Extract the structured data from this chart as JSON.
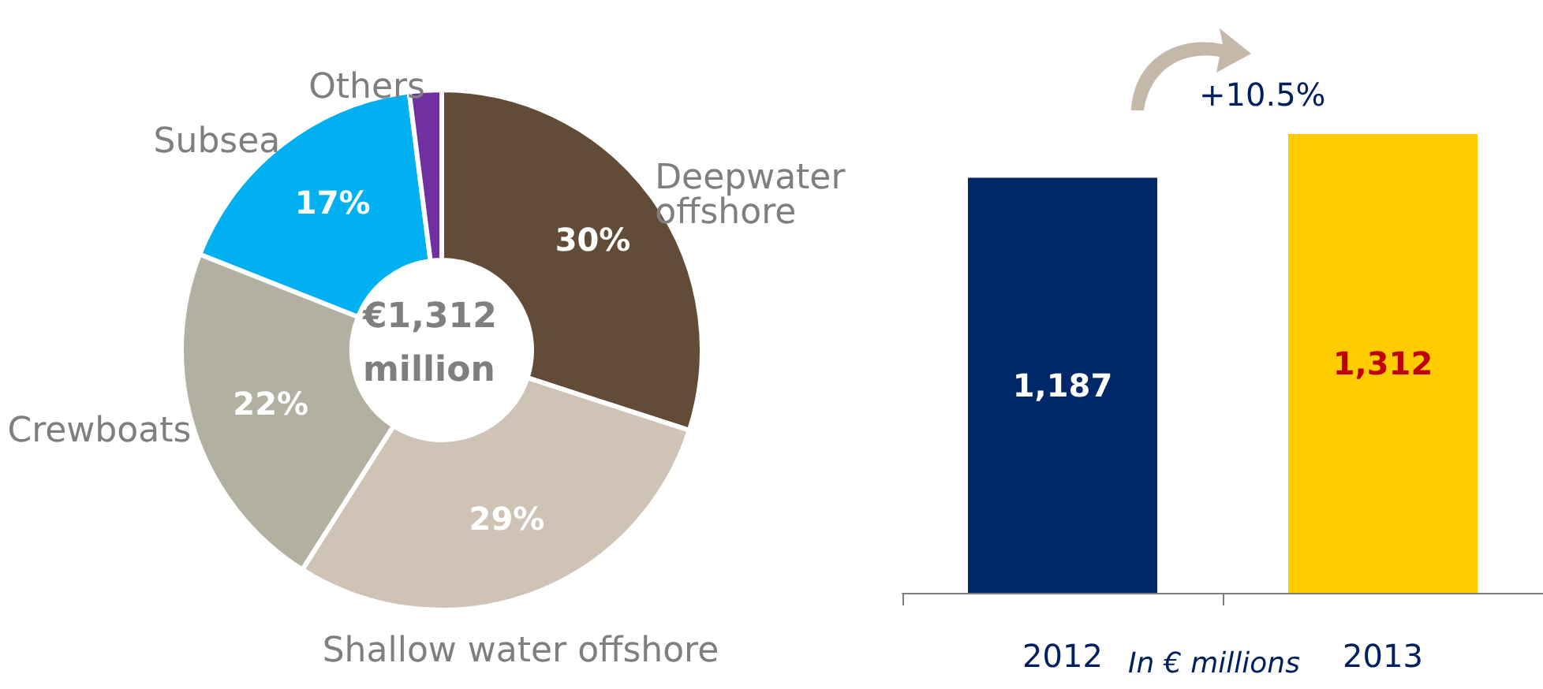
{
  "chart_data": [
    {
      "type": "donut",
      "categories": [
        "Deepwater offshore",
        "Shallow water offshore",
        "Crewboats",
        "Subsea",
        "Others"
      ],
      "values": [
        30,
        29,
        22,
        17,
        2
      ],
      "colors": [
        "#624c38",
        "#cfc3b5",
        "#b2b0a1",
        "#00b0f0",
        "#7030a0"
      ],
      "value_labels": [
        "30%",
        "29%",
        "22%",
        "17%",
        null
      ],
      "annotations": [
        "€1,312 million"
      ],
      "legend": false
    },
    {
      "type": "bar",
      "categories": [
        "2012",
        "2013"
      ],
      "values": [
        1187,
        1312
      ],
      "colors": [
        "#002868",
        "#ffcc00"
      ],
      "value_labels": [
        "1,187",
        "1,312"
      ],
      "annotations": [
        "+10.5%",
        "In € millions"
      ],
      "legend": false
    }
  ]
}
